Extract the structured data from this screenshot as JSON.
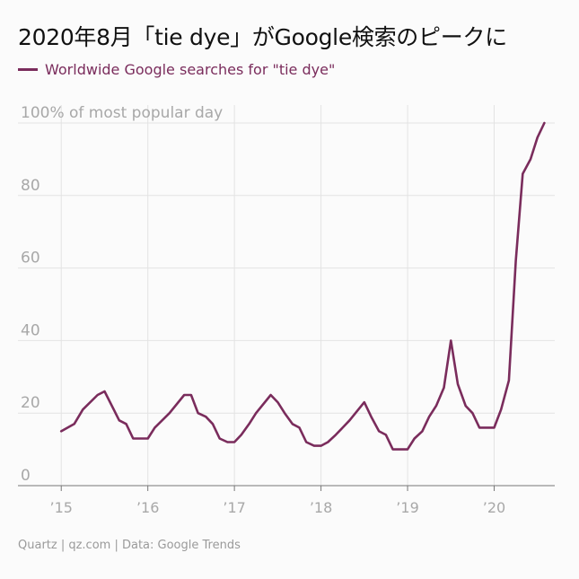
{
  "header": {
    "title": "2020年8月「tie dye」がGoogle検索のピークに"
  },
  "footer": {
    "source": "Quartz | qz.com | Data: Google Trends"
  },
  "colors": {
    "series": "#7a2c5c",
    "grid": "#e3e3e3",
    "tick_text": "#a8a8a8",
    "axis": "#777777"
  },
  "chart_data": {
    "type": "line",
    "title": "2020年8月「tie dye」がGoogle検索のピークに",
    "ylabel": "100% of most popular day",
    "ylim": [
      0,
      100
    ],
    "yticks": [
      0,
      20,
      40,
      60,
      80,
      100
    ],
    "ytick_labels": [
      "0",
      "20",
      "40",
      "60",
      "80",
      "100% of most popular day"
    ],
    "xlim": [
      2014.5,
      2020.7
    ],
    "xticks": [
      2015,
      2016,
      2017,
      2018,
      2019,
      2020
    ],
    "xtick_labels": [
      "’15",
      "’16",
      "’17",
      "’18",
      "’19",
      "’20"
    ],
    "grid": true,
    "legend_position": "top-left",
    "series": [
      {
        "name": "Worldwide Google searches for \"tie dye\"",
        "x": [
          2015.0,
          2015.15,
          2015.25,
          2015.42,
          2015.5,
          2015.67,
          2015.75,
          2015.83,
          2016.0,
          2016.08,
          2016.25,
          2016.42,
          2016.5,
          2016.58,
          2016.67,
          2016.75,
          2016.83,
          2016.92,
          2017.0,
          2017.08,
          2017.17,
          2017.25,
          2017.42,
          2017.5,
          2017.58,
          2017.67,
          2017.75,
          2017.83,
          2017.92,
          2018.0,
          2018.08,
          2018.17,
          2018.25,
          2018.33,
          2018.5,
          2018.58,
          2018.67,
          2018.75,
          2018.83,
          2019.0,
          2019.08,
          2019.17,
          2019.25,
          2019.33,
          2019.42,
          2019.5,
          2019.58,
          2019.67,
          2019.75,
          2019.83,
          2020.0,
          2020.08,
          2020.17,
          2020.25,
          2020.33,
          2020.42,
          2020.5,
          2020.58
        ],
        "y": [
          15,
          17,
          21,
          25,
          26,
          18,
          17,
          13,
          13,
          16,
          20,
          25,
          25,
          20,
          19,
          17,
          13,
          12,
          12,
          14,
          17,
          20,
          25,
          23,
          20,
          17,
          16,
          12,
          11,
          11,
          12,
          14,
          16,
          18,
          23,
          19,
          15,
          14,
          10,
          10,
          13,
          15,
          19,
          22,
          27,
          40,
          28,
          22,
          20,
          16,
          16,
          21,
          29,
          62,
          86,
          90,
          96,
          100
        ]
      }
    ]
  }
}
